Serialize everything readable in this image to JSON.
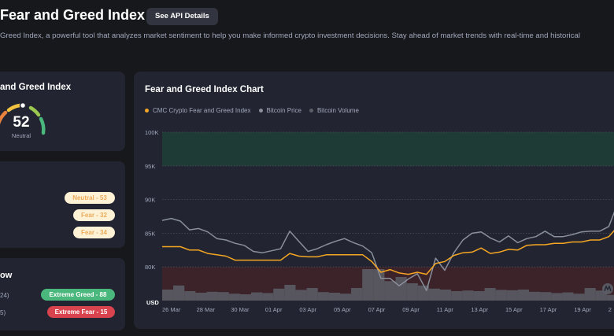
{
  "header": {
    "title": "Fear and Greed Index",
    "api_button_label": "See API Details",
    "description": "Greed Index, a powerful tool that analyzes market sentiment to help you make informed crypto investment decisions. Stay ahead of market trends with real-time and historical"
  },
  "gauge_card": {
    "title": "and Greed Index",
    "value": 52,
    "value_text": "52",
    "label": "Neutral"
  },
  "historical_card": {
    "pills": [
      {
        "text": "Neutral - 53"
      },
      {
        "text": "Fear - 32"
      },
      {
        "text": "Fear - 34"
      }
    ]
  },
  "highlow_card": {
    "title": "ow",
    "rows": [
      {
        "date": "24)",
        "pill": "Extreme Greed - 88"
      },
      {
        "date": "5)",
        "pill": "Extreme Fear - 15"
      }
    ]
  },
  "chart_card": {
    "title": "Fear and Greed Index Chart",
    "watermark_icon": "coinmarketcap-logo-icon"
  },
  "colors": {
    "background": "#17181b",
    "card": "#222531",
    "fgi_line": "#f5a623",
    "btc_line": "#8a8f9c",
    "volume_bar": "#5d5f68",
    "greed_zone": "#1f3b35",
    "fear_zone": "#3b2329",
    "greed_pill": "#4ab77c",
    "fear_pill": "#d9434e"
  },
  "chart_data": {
    "type": "line",
    "legend": [
      "CMC Crypto Fear and Greed Index",
      "Bitcoin Price",
      "Bitcoin Volume"
    ],
    "y_axis_label": "USD",
    "y_ticks": [
      "100K",
      "95K",
      "90K",
      "85K",
      "80K"
    ],
    "ylim": [
      75000,
      100000
    ],
    "x_ticks": [
      "26 Mar",
      "28 Mar",
      "30 Mar",
      "01 Apr",
      "03 Apr",
      "05 Apr",
      "07 Apr",
      "09 Apr",
      "11 Apr",
      "13 Apr",
      "15 Apr",
      "17 Apr",
      "19 Apr",
      "2"
    ],
    "bands": [
      {
        "from": 95000,
        "to": 100000,
        "color": "#1f3b35"
      },
      {
        "from": 75000,
        "to": 80000,
        "color": "#3b2329"
      }
    ],
    "series": [
      {
        "name": "Bitcoin Price",
        "color": "#8a8f9c",
        "values": [
          86900,
          87200,
          86800,
          85500,
          85700,
          85200,
          84200,
          84000,
          83500,
          83200,
          82300,
          82100,
          82400,
          82700,
          85300,
          83800,
          82300,
          82700,
          83300,
          83800,
          84200,
          83600,
          83100,
          82100,
          78300,
          78300,
          77200,
          78200,
          79000,
          76500,
          81300,
          79500,
          82100,
          84000,
          85000,
          85200,
          84300,
          83700,
          84600,
          83600,
          84200,
          84500,
          85300,
          84500,
          84500,
          84800,
          85200,
          85300,
          85300,
          86000,
          89500
        ]
      },
      {
        "name": "CMC Crypto Fear and Greed Index",
        "color": "#f5a623",
        "values": [
          83000,
          83000,
          83000,
          82500,
          82500,
          82000,
          81800,
          81600,
          81000,
          81000,
          81000,
          81000,
          81000,
          81000,
          82000,
          81600,
          81500,
          81500,
          81800,
          81800,
          81800,
          81800,
          81800,
          80800,
          79200,
          79600,
          79100,
          78900,
          79200,
          78900,
          80500,
          80800,
          81700,
          82100,
          82200,
          82800,
          82000,
          82200,
          82600,
          82500,
          83200,
          83300,
          83300,
          83500,
          83500,
          83700,
          83700,
          84000,
          84000,
          84500,
          86000
        ]
      }
    ],
    "volume": {
      "name": "Bitcoin Volume",
      "color": "#5d5f68",
      "values": [
        0.35,
        0.48,
        0.3,
        0.25,
        0.28,
        0.27,
        0.22,
        0.2,
        0.26,
        0.24,
        0.38,
        0.5,
        0.34,
        0.4,
        0.27,
        0.25,
        0.22,
        0.4,
        1.0,
        1.0,
        0.62,
        0.75,
        0.55,
        0.48,
        0.38,
        0.35,
        0.3,
        0.32,
        0.3,
        0.4,
        0.34,
        0.33,
        0.35,
        0.28,
        0.27,
        0.24,
        0.26,
        0.22,
        0.4,
        0.32,
        0.18
      ]
    }
  }
}
